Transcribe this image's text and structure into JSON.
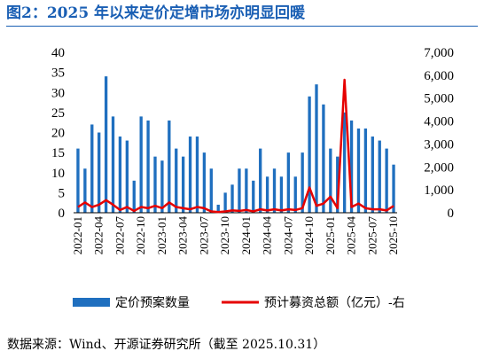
{
  "header": {
    "title": "图2：2025 年以来定价定增市场亦明显回暖"
  },
  "footer": {
    "source": "数据来源：Wind、开源证券研究所（截至 2025.10.31）"
  },
  "colors": {
    "title": "#1a5fb4",
    "bar": "#1f6fbf",
    "line": "#e60000"
  },
  "chart_data": {
    "type": "bar",
    "title": "",
    "xlabel": "",
    "ylabel": "",
    "y2label": "",
    "ylim": [
      0,
      40
    ],
    "y2lim": [
      0,
      7000
    ],
    "yticks": [
      "0",
      "5",
      "10",
      "15",
      "20",
      "25",
      "30",
      "35",
      "40"
    ],
    "y2ticks": [
      "0",
      "1,000",
      "2,000",
      "3,000",
      "4,000",
      "5,000",
      "6,000",
      "7,000"
    ],
    "xtick_labels": [
      "2022-01",
      "2022-04",
      "2022-07",
      "2022-10",
      "2023-01",
      "2023-04",
      "2023-07",
      "2023-10",
      "2024-01",
      "2024-04",
      "2024-07",
      "2024-10",
      "2025-01",
      "2025-04",
      "2025-07",
      "2025-10"
    ],
    "categories": [
      "2022-01",
      "2022-02",
      "2022-03",
      "2022-04",
      "2022-05",
      "2022-06",
      "2022-07",
      "2022-08",
      "2022-09",
      "2022-10",
      "2022-11",
      "2022-12",
      "2023-01",
      "2023-02",
      "2023-03",
      "2023-04",
      "2023-05",
      "2023-06",
      "2023-07",
      "2023-08",
      "2023-09",
      "2023-10",
      "2023-11",
      "2023-12",
      "2024-01",
      "2024-02",
      "2024-03",
      "2024-04",
      "2024-05",
      "2024-06",
      "2024-07",
      "2024-08",
      "2024-09",
      "2024-10",
      "2024-11",
      "2024-12",
      "2025-01",
      "2025-02",
      "2025-03",
      "2025-04",
      "2025-05",
      "2025-06",
      "2025-07",
      "2025-08",
      "2025-09",
      "2025-10"
    ],
    "series": [
      {
        "name": "定价预案数量",
        "type": "bar",
        "axis": "left",
        "values": [
          16,
          11,
          22,
          20,
          34,
          24,
          19,
          18,
          8,
          24,
          23,
          14,
          13,
          23,
          16,
          14,
          19,
          19,
          15,
          11,
          2,
          5,
          7,
          11,
          11,
          8,
          16,
          9,
          11,
          9,
          15,
          9,
          15,
          29,
          32,
          27,
          16,
          14,
          25,
          23,
          21,
          21,
          19,
          18,
          16,
          12
        ]
      },
      {
        "name": "预计募资总额（亿元）-右",
        "type": "line",
        "axis": "right",
        "values": [
          250,
          450,
          250,
          350,
          550,
          350,
          120,
          250,
          80,
          250,
          200,
          300,
          200,
          450,
          250,
          200,
          150,
          250,
          200,
          60,
          30,
          60,
          100,
          80,
          120,
          60,
          150,
          100,
          150,
          100,
          150,
          120,
          200,
          1100,
          300,
          400,
          700,
          200,
          5800,
          250,
          400,
          200,
          150,
          150,
          100,
          300
        ]
      }
    ],
    "legend_position": "bottom",
    "grid": false
  }
}
